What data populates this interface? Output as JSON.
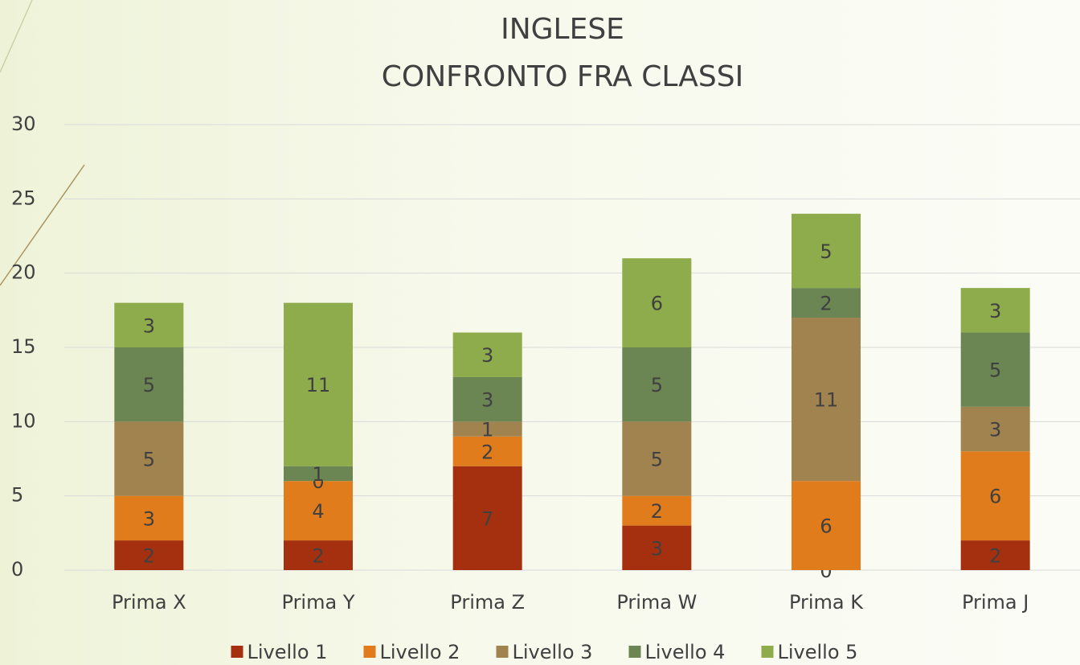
{
  "chart_data": {
    "type": "stacked_bar",
    "title": [
      "INGLESE",
      "CONFRONTO FRA CLASSI"
    ],
    "categories": [
      "Prima X",
      "Prima Y",
      "Prima Z",
      "Prima W",
      "Prima K",
      "Prima J"
    ],
    "series": [
      {
        "name": "Livello 1",
        "color": "#a5300f",
        "values": [
          2,
          2,
          7,
          3,
          0,
          2
        ]
      },
      {
        "name": "Livello 2",
        "color": "#e07c1c",
        "values": [
          3,
          4,
          2,
          2,
          6,
          6
        ]
      },
      {
        "name": "Livello 3",
        "color": "#a0834f",
        "values": [
          5,
          0,
          1,
          5,
          11,
          3
        ]
      },
      {
        "name": "Livello 4",
        "color": "#6b8553",
        "values": [
          5,
          1,
          3,
          5,
          2,
          5
        ]
      },
      {
        "name": "Livello 5",
        "color": "#8fac4c",
        "values": [
          3,
          11,
          3,
          6,
          5,
          3
        ]
      }
    ],
    "ylim": [
      0,
      30
    ],
    "yticks": [
      0,
      5,
      10,
      15,
      20,
      25,
      30
    ],
    "grid": true,
    "legend": "bottom"
  }
}
